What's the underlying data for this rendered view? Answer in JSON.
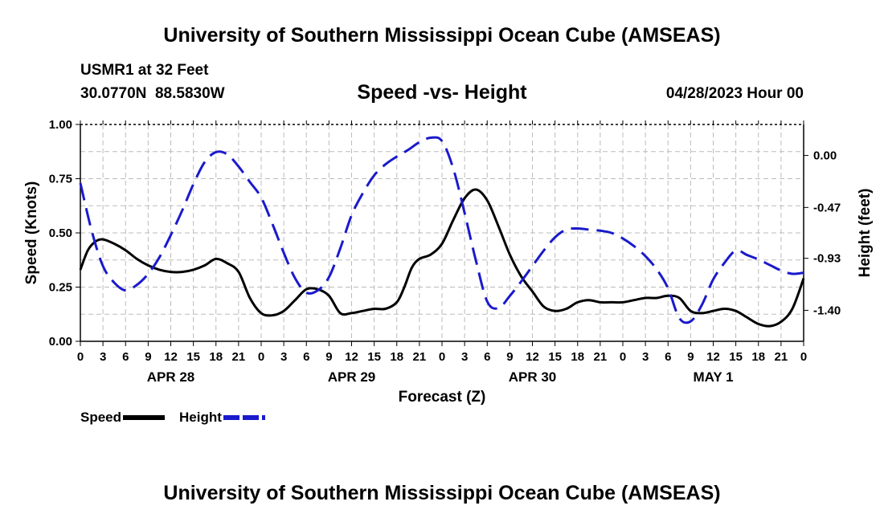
{
  "page": {
    "title": "University of Southern Mississippi Ocean Cube (AMSEAS)",
    "footer_title": "University of Southern Mississippi Ocean Cube (AMSEAS)"
  },
  "header": {
    "station": "USMR1 at 32 Feet",
    "coords": "30.0770N  88.5830W",
    "subtitle": "Speed -vs- Height",
    "datetime": "04/28/2023 Hour 00"
  },
  "legend": {
    "speed_label": "Speed",
    "height_label": "Height"
  },
  "colors": {
    "speed": "#000000",
    "height": "#1a1acc",
    "grid": "#bbbbbb"
  },
  "chart_data": {
    "type": "line",
    "title": "Speed -vs- Height",
    "xlabel": "Forecast (Z)",
    "ylabel": "Speed (Knots)",
    "y2label": "Height (feet)",
    "xlim": [
      0,
      96
    ],
    "ylim": [
      0,
      1.0
    ],
    "y2lim": [
      -1.68,
      0.28
    ],
    "x_ticks": [
      0,
      3,
      6,
      9,
      12,
      15,
      18,
      21,
      24,
      27,
      30,
      33,
      36,
      39,
      42,
      45,
      48,
      51,
      54,
      57,
      60,
      63,
      66,
      69,
      72,
      75,
      78,
      81,
      84,
      87,
      90,
      93,
      96
    ],
    "x_tick_labels": [
      "0",
      "3",
      "6",
      "9",
      "12",
      "15",
      "18",
      "21",
      "0",
      "3",
      "6",
      "9",
      "12",
      "15",
      "18",
      "21",
      "0",
      "3",
      "6",
      "9",
      "12",
      "15",
      "18",
      "21",
      "0",
      "3",
      "6",
      "9",
      "12",
      "15",
      "18",
      "21",
      "0"
    ],
    "date_labels": [
      {
        "x": 12,
        "label": "APR 28"
      },
      {
        "x": 36,
        "label": "APR 29"
      },
      {
        "x": 60,
        "label": "APR 30"
      },
      {
        "x": 84,
        "label": "MAY 1"
      }
    ],
    "y_ticks": [
      0,
      0.25,
      0.5,
      0.75,
      1.0
    ],
    "y_tick_labels": [
      "0.00",
      "0.25",
      "0.50",
      "0.75",
      "1.00"
    ],
    "y2_ticks": [
      0.0,
      -0.47,
      -0.93,
      -1.4
    ],
    "y2_tick_labels": [
      "0.00",
      "-0.47",
      "-0.93",
      "-1.40"
    ],
    "grid": true,
    "legend_position": "bottom-left",
    "series": [
      {
        "name": "Speed",
        "axis": "left",
        "style": "solid",
        "points": [
          [
            0,
            0.33
          ],
          [
            1,
            0.42
          ],
          [
            2,
            0.46
          ],
          [
            3,
            0.47
          ],
          [
            4.5,
            0.45
          ],
          [
            6,
            0.42
          ],
          [
            7.5,
            0.38
          ],
          [
            9,
            0.35
          ],
          [
            10.5,
            0.33
          ],
          [
            12,
            0.32
          ],
          [
            13.5,
            0.32
          ],
          [
            15,
            0.33
          ],
          [
            16.5,
            0.35
          ],
          [
            18,
            0.38
          ],
          [
            19.5,
            0.36
          ],
          [
            21,
            0.32
          ],
          [
            22.5,
            0.2
          ],
          [
            24,
            0.13
          ],
          [
            25.5,
            0.12
          ],
          [
            27,
            0.14
          ],
          [
            28.5,
            0.19
          ],
          [
            30,
            0.24
          ],
          [
            31.5,
            0.24
          ],
          [
            33,
            0.21
          ],
          [
            34.5,
            0.13
          ],
          [
            36,
            0.13
          ],
          [
            37.5,
            0.14
          ],
          [
            39,
            0.15
          ],
          [
            40.5,
            0.15
          ],
          [
            42,
            0.18
          ],
          [
            43,
            0.25
          ],
          [
            44,
            0.34
          ],
          [
            45,
            0.38
          ],
          [
            46.5,
            0.4
          ],
          [
            48,
            0.45
          ],
          [
            49.5,
            0.56
          ],
          [
            51,
            0.66
          ],
          [
            52.5,
            0.7
          ],
          [
            54,
            0.65
          ],
          [
            55.5,
            0.53
          ],
          [
            57,
            0.4
          ],
          [
            58.5,
            0.3
          ],
          [
            60,
            0.23
          ],
          [
            61.5,
            0.16
          ],
          [
            63,
            0.14
          ],
          [
            64.5,
            0.15
          ],
          [
            66,
            0.18
          ],
          [
            67.5,
            0.19
          ],
          [
            69,
            0.18
          ],
          [
            70.5,
            0.18
          ],
          [
            72,
            0.18
          ],
          [
            73.5,
            0.19
          ],
          [
            75,
            0.2
          ],
          [
            76.5,
            0.2
          ],
          [
            78,
            0.21
          ],
          [
            79.5,
            0.2
          ],
          [
            81,
            0.14
          ],
          [
            82.5,
            0.13
          ],
          [
            84,
            0.14
          ],
          [
            85.5,
            0.15
          ],
          [
            87,
            0.14
          ],
          [
            88.5,
            0.11
          ],
          [
            90,
            0.08
          ],
          [
            91.5,
            0.07
          ],
          [
            93,
            0.09
          ],
          [
            94.5,
            0.15
          ],
          [
            96,
            0.29
          ]
        ]
      },
      {
        "name": "Height",
        "axis": "right",
        "style": "dashed",
        "points": [
          [
            0,
            -0.25
          ],
          [
            1.5,
            -0.68
          ],
          [
            3,
            -1.0
          ],
          [
            4.5,
            -1.15
          ],
          [
            6,
            -1.22
          ],
          [
            7.5,
            -1.17
          ],
          [
            9,
            -1.07
          ],
          [
            10.5,
            -0.92
          ],
          [
            12,
            -0.72
          ],
          [
            13.5,
            -0.5
          ],
          [
            15,
            -0.26
          ],
          [
            16.5,
            -0.06
          ],
          [
            18,
            0.03
          ],
          [
            19.5,
            0.01
          ],
          [
            21,
            -0.1
          ],
          [
            22.5,
            -0.24
          ],
          [
            24,
            -0.38
          ],
          [
            25.5,
            -0.62
          ],
          [
            27,
            -0.88
          ],
          [
            28.5,
            -1.11
          ],
          [
            30,
            -1.24
          ],
          [
            31.5,
            -1.22
          ],
          [
            33,
            -1.1
          ],
          [
            34.5,
            -0.84
          ],
          [
            36,
            -0.54
          ],
          [
            37.5,
            -0.34
          ],
          [
            39,
            -0.18
          ],
          [
            40.5,
            -0.08
          ],
          [
            42,
            -0.01
          ],
          [
            43.5,
            0.05
          ],
          [
            45,
            0.12
          ],
          [
            46.5,
            0.16
          ],
          [
            48,
            0.13
          ],
          [
            49.5,
            -0.12
          ],
          [
            51,
            -0.52
          ],
          [
            52.5,
            -0.95
          ],
          [
            54,
            -1.32
          ],
          [
            55.5,
            -1.38
          ],
          [
            57,
            -1.27
          ],
          [
            58.5,
            -1.14
          ],
          [
            60,
            -1.0
          ],
          [
            61.5,
            -0.86
          ],
          [
            63,
            -0.74
          ],
          [
            64.5,
            -0.67
          ],
          [
            66,
            -0.66
          ],
          [
            67.5,
            -0.67
          ],
          [
            69,
            -0.68
          ],
          [
            70.5,
            -0.7
          ],
          [
            72,
            -0.75
          ],
          [
            73.5,
            -0.82
          ],
          [
            75,
            -0.91
          ],
          [
            76.5,
            -1.03
          ],
          [
            78,
            -1.2
          ],
          [
            79.5,
            -1.47
          ],
          [
            81,
            -1.5
          ],
          [
            82.5,
            -1.35
          ],
          [
            84,
            -1.12
          ],
          [
            85.5,
            -0.97
          ],
          [
            87,
            -0.86
          ],
          [
            88.5,
            -0.9
          ],
          [
            90,
            -0.94
          ],
          [
            91.5,
            -0.99
          ],
          [
            93,
            -1.04
          ],
          [
            94.5,
            -1.07
          ],
          [
            96,
            -1.06
          ]
        ]
      }
    ]
  }
}
